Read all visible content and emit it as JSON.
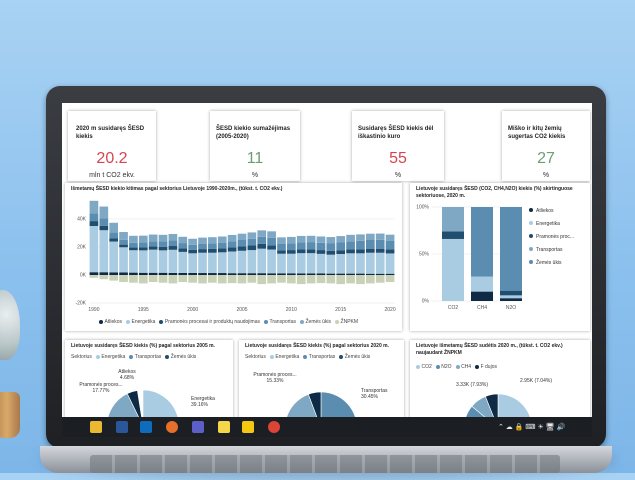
{
  "kpis": [
    {
      "title": "2020 m susidaręs ŠESD kiekis",
      "value": "20.2",
      "unit": "mln t CO2 ekv.",
      "color": "#d64550"
    },
    {
      "title": "ŠESD kiekio sumažėjimas (2005-2020)",
      "value": "11",
      "unit": "%",
      "color": "#6b9e72"
    },
    {
      "title": "Susidaręs ŠESD kiekis dėl iškastinio kuro",
      "value": "55",
      "unit": "%",
      "color": "#d64550"
    },
    {
      "title": "Miško ir kitų žemių sugertas CO2 kiekis",
      "value": "27",
      "unit": "%",
      "color": "#6b9e72"
    }
  ],
  "chart_data": [
    {
      "type": "bar",
      "title": "Išmetamų ŠESD kiekio kitimas pagal sektorius Lietuvoje 1990-2020m., (tūkst. t. CO2 ekv.)",
      "ylim": [
        -20000,
        50000
      ],
      "y_ticks": [
        "40K",
        "20K",
        "0K",
        "-20K"
      ],
      "x_ticks": [
        "1990",
        "1995",
        "2000",
        "2005",
        "2010",
        "2015",
        "2020"
      ],
      "x": [
        1990,
        1991,
        1992,
        1993,
        1994,
        1995,
        1996,
        1997,
        1998,
        1999,
        2000,
        2001,
        2002,
        2003,
        2004,
        2005,
        2006,
        2007,
        2008,
        2009,
        2010,
        2011,
        2012,
        2013,
        2014,
        2015,
        2016,
        2017,
        2018,
        2019,
        2020
      ],
      "series": [
        {
          "name": "Atliekos",
          "color": "#0e2a44",
          "values": [
            2000,
            2000,
            1900,
            1800,
            1700,
            1600,
            1600,
            1600,
            1500,
            1500,
            1500,
            1400,
            1400,
            1400,
            1300,
            1300,
            1300,
            1300,
            1200,
            1200,
            1200,
            1100,
            1100,
            1100,
            1000,
            1000,
            1000,
            1000,
            900,
            900,
            900
          ]
        },
        {
          "name": "Energetika",
          "color": "#a9cce3",
          "values": [
            33000,
            30000,
            22000,
            18000,
            16000,
            16000,
            16500,
            16000,
            16500,
            15000,
            14000,
            14500,
            14500,
            14800,
            15500,
            16000,
            16500,
            17500,
            17000,
            14000,
            14000,
            14500,
            14500,
            14000,
            13500,
            14000,
            14500,
            14500,
            15000,
            15000,
            14500
          ]
        },
        {
          "name": "Pramonės procesai ir produktų naudojimas",
          "color": "#1f4e6e",
          "values": [
            3500,
            3200,
            2200,
            1900,
            1900,
            2200,
            2400,
            2600,
            2700,
            2500,
            2400,
            2600,
            2700,
            2800,
            3000,
            3100,
            3300,
            3400,
            3000,
            2400,
            2600,
            2800,
            2800,
            2700,
            2700,
            2700,
            2800,
            2900,
            2900,
            2900,
            2900
          ]
        },
        {
          "name": "Transportas",
          "color": "#5b8db0",
          "values": [
            5500,
            5200,
            4200,
            3500,
            3400,
            3500,
            3600,
            3800,
            4000,
            3800,
            3700,
            3900,
            4000,
            4100,
            4300,
            4600,
            4800,
            5100,
            5400,
            4800,
            4900,
            5000,
            5100,
            5200,
            5300,
            5500,
            5800,
            6000,
            6200,
            6300,
            6000
          ]
        },
        {
          "name": "Žemės ūkis",
          "color": "#7fa8c4",
          "values": [
            9000,
            8500,
            7000,
            5500,
            5000,
            4800,
            4800,
            4700,
            4600,
            4500,
            4300,
            4300,
            4400,
            4400,
            4500,
            4500,
            4500,
            4600,
            4600,
            4500,
            4500,
            4500,
            4500,
            4500,
            4600,
            4600,
            4600,
            4600,
            4500,
            4500,
            4500
          ]
        },
        {
          "name": "ŽNPKM",
          "color": "#c9d1b7",
          "values": [
            -2000,
            -3000,
            -4000,
            -5000,
            -5500,
            -6000,
            -5000,
            -5500,
            -6000,
            -5000,
            -5500,
            -6000,
            -5500,
            -6000,
            -5800,
            -6000,
            -5500,
            -6500,
            -6000,
            -5500,
            -6000,
            -6500,
            -6000,
            -5800,
            -6000,
            -6500,
            -6000,
            -6500,
            -6000,
            -5500,
            -5000
          ]
        }
      ]
    },
    {
      "type": "bar",
      "title": "Lietuvoje susidaręs ŠESD (CO2, CH4,N2O) kiekis (%) skirtinguose sektoriuose, 2020 m.",
      "categories": [
        "CO2",
        "CH4",
        "N2O"
      ],
      "y_ticks": [
        "100%",
        "50%",
        "0%"
      ],
      "ylim": [
        0,
        100
      ],
      "series": [
        {
          "name": "Atliekos",
          "color": "#0e2a44",
          "values": [
            0,
            10,
            3
          ]
        },
        {
          "name": "Energetika",
          "color": "#a9cce3",
          "values": [
            66,
            16,
            3
          ]
        },
        {
          "name": "Pramonės proc...",
          "color": "#1f4e6e",
          "values": [
            8,
            0,
            5
          ]
        },
        {
          "name": "Transportas",
          "color": "#7fa8c4",
          "values": [
            26,
            0,
            0
          ]
        },
        {
          "name": "Žemės ūkis",
          "color": "#5b8db0",
          "values": [
            0,
            74,
            89
          ]
        }
      ]
    }
  ],
  "pies": {
    "pie2005": {
      "title": "Lietuvoje susidaręs ŠESD kiekis (%) pagal sektorius 2005 m.",
      "legend_label": "Sektorius",
      "legend": [
        {
          "name": "Energetika",
          "color": "#a9cce3"
        },
        {
          "name": "Transportas",
          "color": "#5b8db0"
        },
        {
          "name": "Žemės ūkis",
          "color": "#1f4e6e"
        }
      ],
      "labels": [
        {
          "name": "Atliekos",
          "pct": "4.68%"
        },
        {
          "name": "Pramonės proces...",
          "pct": "17.77%"
        },
        {
          "name": "Energetika",
          "pct": "39.16%"
        }
      ]
    },
    "pie2020": {
      "title": "Lietuvoje susidaręs ŠESD kiekis (%) pagal sektorius 2020 m.",
      "legend_label": "Sektorius",
      "legend": [
        {
          "name": "Energetika",
          "color": "#a9cce3"
        },
        {
          "name": "Transportas",
          "color": "#5b8db0"
        },
        {
          "name": "Žemės ūkis",
          "color": "#1f4e6e"
        }
      ],
      "labels": [
        {
          "name": "Pramonės proces...",
          "pct": "15.33%"
        },
        {
          "name": "Transportas",
          "pct": "30.45%"
        }
      ]
    },
    "pie_gas": {
      "title": "Lietuvoje išmetamų ŠESD sudėtis 2020 m., (tūkst. t. CO2 ekv.) naujaudant ŽNPKM",
      "legend": [
        {
          "name": "CO2",
          "color": "#a9cce3"
        },
        {
          "name": "N2O",
          "color": "#5b8db0"
        },
        {
          "name": "CH4",
          "color": "#7fa8c4"
        },
        {
          "name": "F dujos",
          "color": "#0e2a44"
        }
      ],
      "labels": [
        {
          "name": "",
          "pct": "3.33K (7.93%)"
        },
        {
          "name": "",
          "pct": "2.95K (7.04%)"
        }
      ]
    }
  },
  "taskbar": {
    "icons": [
      {
        "name": "file-explorer-icon",
        "color": "#e8b931"
      },
      {
        "name": "word-icon",
        "color": "#2b579a"
      },
      {
        "name": "outlook-icon",
        "color": "#0f6cbd"
      },
      {
        "name": "firefox-icon",
        "color": "#e76f2c"
      },
      {
        "name": "teams-icon",
        "color": "#5b5fc7"
      },
      {
        "name": "sticky-notes-icon",
        "color": "#f7d54a"
      },
      {
        "name": "powerbi-icon",
        "color": "#f2c811"
      },
      {
        "name": "chrome-icon",
        "color": "#db4437"
      }
    ],
    "tray_glyphs": "⌃ ☁ 🔒 ⌨ ☀ 🖥 🔊"
  }
}
